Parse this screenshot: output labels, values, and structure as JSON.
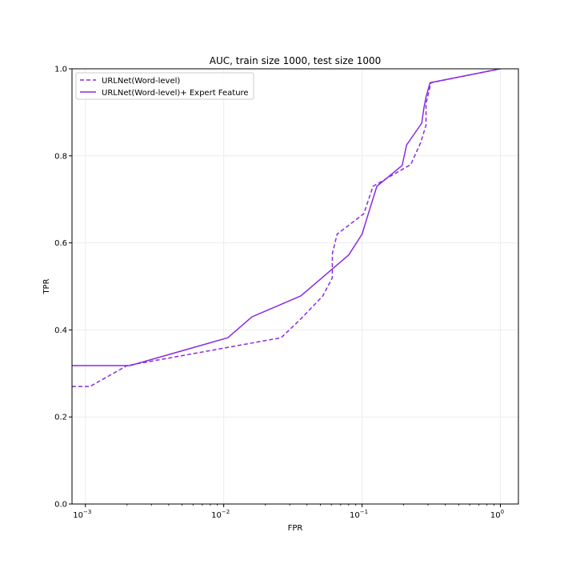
{
  "chart_data": {
    "type": "line",
    "title": "AUC, train size 1000, test size 1000",
    "xlabel": "FPR",
    "ylabel": "TPR",
    "xscale": "log",
    "xlim": [
      0.0008,
      1.35
    ],
    "ylim": [
      0.0,
      1.0
    ],
    "grid": true,
    "legend_position": "top-left",
    "x_ticks": [
      {
        "value": 0.001,
        "base": "10",
        "exp": "−3"
      },
      {
        "value": 0.01,
        "base": "10",
        "exp": "−2"
      },
      {
        "value": 0.1,
        "base": "10",
        "exp": "−1"
      },
      {
        "value": 1,
        "base": "10",
        "exp": "0"
      }
    ],
    "y_ticks": [
      {
        "value": 0.0,
        "label": "0.0"
      },
      {
        "value": 0.2,
        "label": "0.2"
      },
      {
        "value": 0.4,
        "label": "0.4"
      },
      {
        "value": 0.6,
        "label": "0.6"
      },
      {
        "value": 0.8,
        "label": "0.8"
      },
      {
        "value": 1.0,
        "label": "1.0"
      }
    ],
    "series": [
      {
        "name": "URLNet(Word-level)",
        "style": "dashed",
        "color": "#8a2be2",
        "x": [
          0.0008,
          0.00108,
          0.002,
          0.026,
          0.036,
          0.052,
          0.061,
          0.061,
          0.066,
          0.103,
          0.12,
          0.225,
          0.265,
          0.29,
          0.29,
          0.315,
          1.0
        ],
        "y": [
          0.27,
          0.27,
          0.318,
          0.382,
          0.425,
          0.478,
          0.52,
          0.575,
          0.62,
          0.667,
          0.73,
          0.78,
          0.83,
          0.87,
          0.92,
          0.968,
          1.0
        ]
      },
      {
        "name": "URLNet(Word-level)+ Expert Feature",
        "style": "solid",
        "color": "#8a2be2",
        "x": [
          0.0008,
          0.0021,
          0.0107,
          0.016,
          0.036,
          0.08,
          0.1,
          0.111,
          0.128,
          0.195,
          0.21,
          0.27,
          0.28,
          0.29,
          0.31,
          1.0
        ],
        "y": [
          0.318,
          0.318,
          0.382,
          0.43,
          0.478,
          0.572,
          0.62,
          0.667,
          0.73,
          0.778,
          0.825,
          0.875,
          0.91,
          0.935,
          0.968,
          1.0
        ]
      }
    ]
  }
}
